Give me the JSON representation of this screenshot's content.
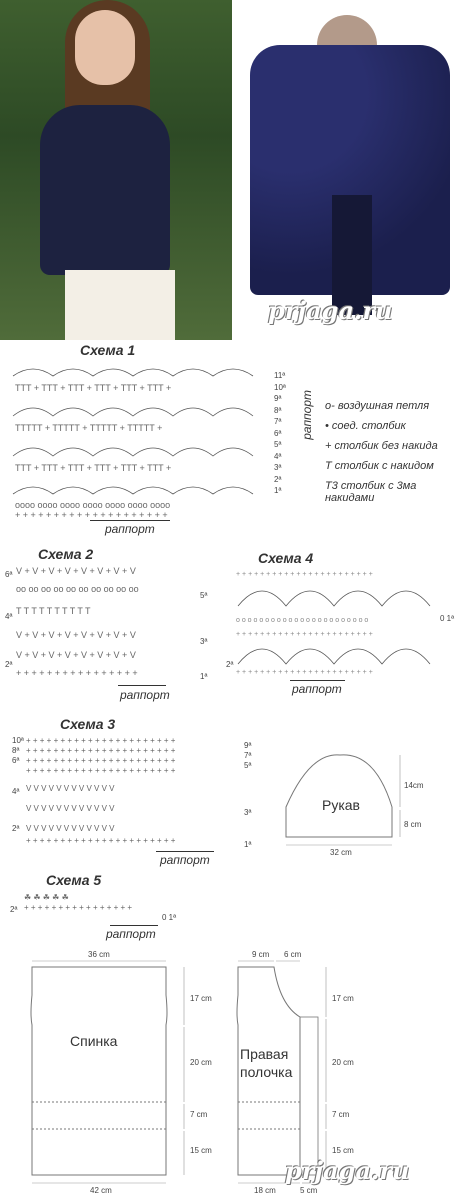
{
  "watermark_text": "prjaga.ru",
  "schemes": {
    "s1": {
      "title": "Схема 1",
      "raport": "раппорт",
      "rows_right": [
        "11ª",
        "10ª",
        "9ª",
        "8ª",
        "7ª",
        "6ª",
        "5ª",
        "4ª",
        "3ª",
        "2ª",
        "1ª"
      ],
      "raport_vertical": "раппорт"
    },
    "s2": {
      "title": "Схема 2",
      "raport": "раппорт",
      "rows_left": [
        "6ª",
        "4ª",
        "2ª"
      ],
      "rows_right": [
        "5ª",
        "3ª",
        "1ª"
      ]
    },
    "s3": {
      "title": "Схема 3",
      "raport": "раппорт",
      "rows_left": [
        "10ª",
        "8ª",
        "6ª",
        "4ª",
        "2ª"
      ],
      "rows_right": [
        "9ª",
        "7ª",
        "5ª",
        "3ª",
        "1ª"
      ]
    },
    "s4": {
      "title": "Схема 4",
      "raport": "раппорт",
      "rows_left": [
        "2ª"
      ],
      "rows_right": [
        "0 1ª"
      ]
    },
    "s5": {
      "title": "Схема 5",
      "raport": "раппорт",
      "rows_left": [
        "2ª"
      ],
      "rows_right": [
        "0 1ª"
      ]
    }
  },
  "legend": [
    {
      "symbol": "o-",
      "label": "воздушная петля"
    },
    {
      "symbol": "•",
      "label": "соед. столбик"
    },
    {
      "symbol": "+",
      "label": "столбик без накида"
    },
    {
      "symbol": "T",
      "label": "столбик с накидом"
    },
    {
      "symbol": "T3",
      "label": "столбик с 3ма накидами"
    }
  ],
  "sleeve": {
    "label": "Рукав",
    "width": "32 cm",
    "h1": "14cm",
    "h2": "8 cm"
  },
  "back": {
    "label": "Спинка",
    "top": "36 cm",
    "bottom": "42 cm",
    "h1": "17 cm",
    "h2": "20 cm",
    "h3": "7 cm",
    "h4": "15 cm"
  },
  "front": {
    "label1": "Правая",
    "label2": "полочка",
    "top1": "9 cm",
    "top2": "6 cm",
    "bottom1": "18 cm",
    "bottom2": "5 cm",
    "h1": "17 cm",
    "h2": "20 cm",
    "h3": "7 cm",
    "h4": "15 cm"
  }
}
